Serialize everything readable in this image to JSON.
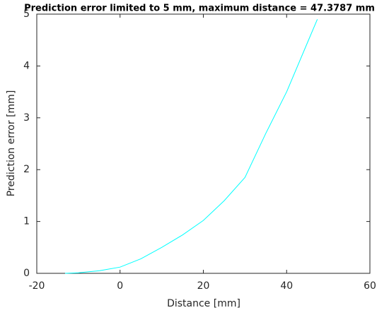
{
  "chart_data": {
    "type": "line",
    "title": "Prediction error limited to 5 mm, maximum distance = 47.3787 mm",
    "x_label": "Distance [mm]",
    "y_label": "Prediction error [mm]",
    "series": [
      {
        "color": "#00ffff",
        "x": [
          -13.2,
          -10,
          -5,
          0,
          5,
          10,
          15,
          20,
          25,
          30,
          35,
          40,
          45,
          47.3787
        ],
        "values": [
          0,
          0.01,
          0.05,
          0.12,
          0.28,
          0.5,
          0.74,
          1.02,
          1.4,
          1.85,
          2.7,
          3.5,
          4.45,
          4.9
        ]
      }
    ],
    "xlim": [
      -20,
      60
    ],
    "xticks": [
      -20,
      0,
      20,
      40,
      60
    ],
    "ylim": [
      0,
      5
    ],
    "yticks": [
      0,
      1,
      2,
      3,
      4,
      5
    ],
    "grid": false
  }
}
